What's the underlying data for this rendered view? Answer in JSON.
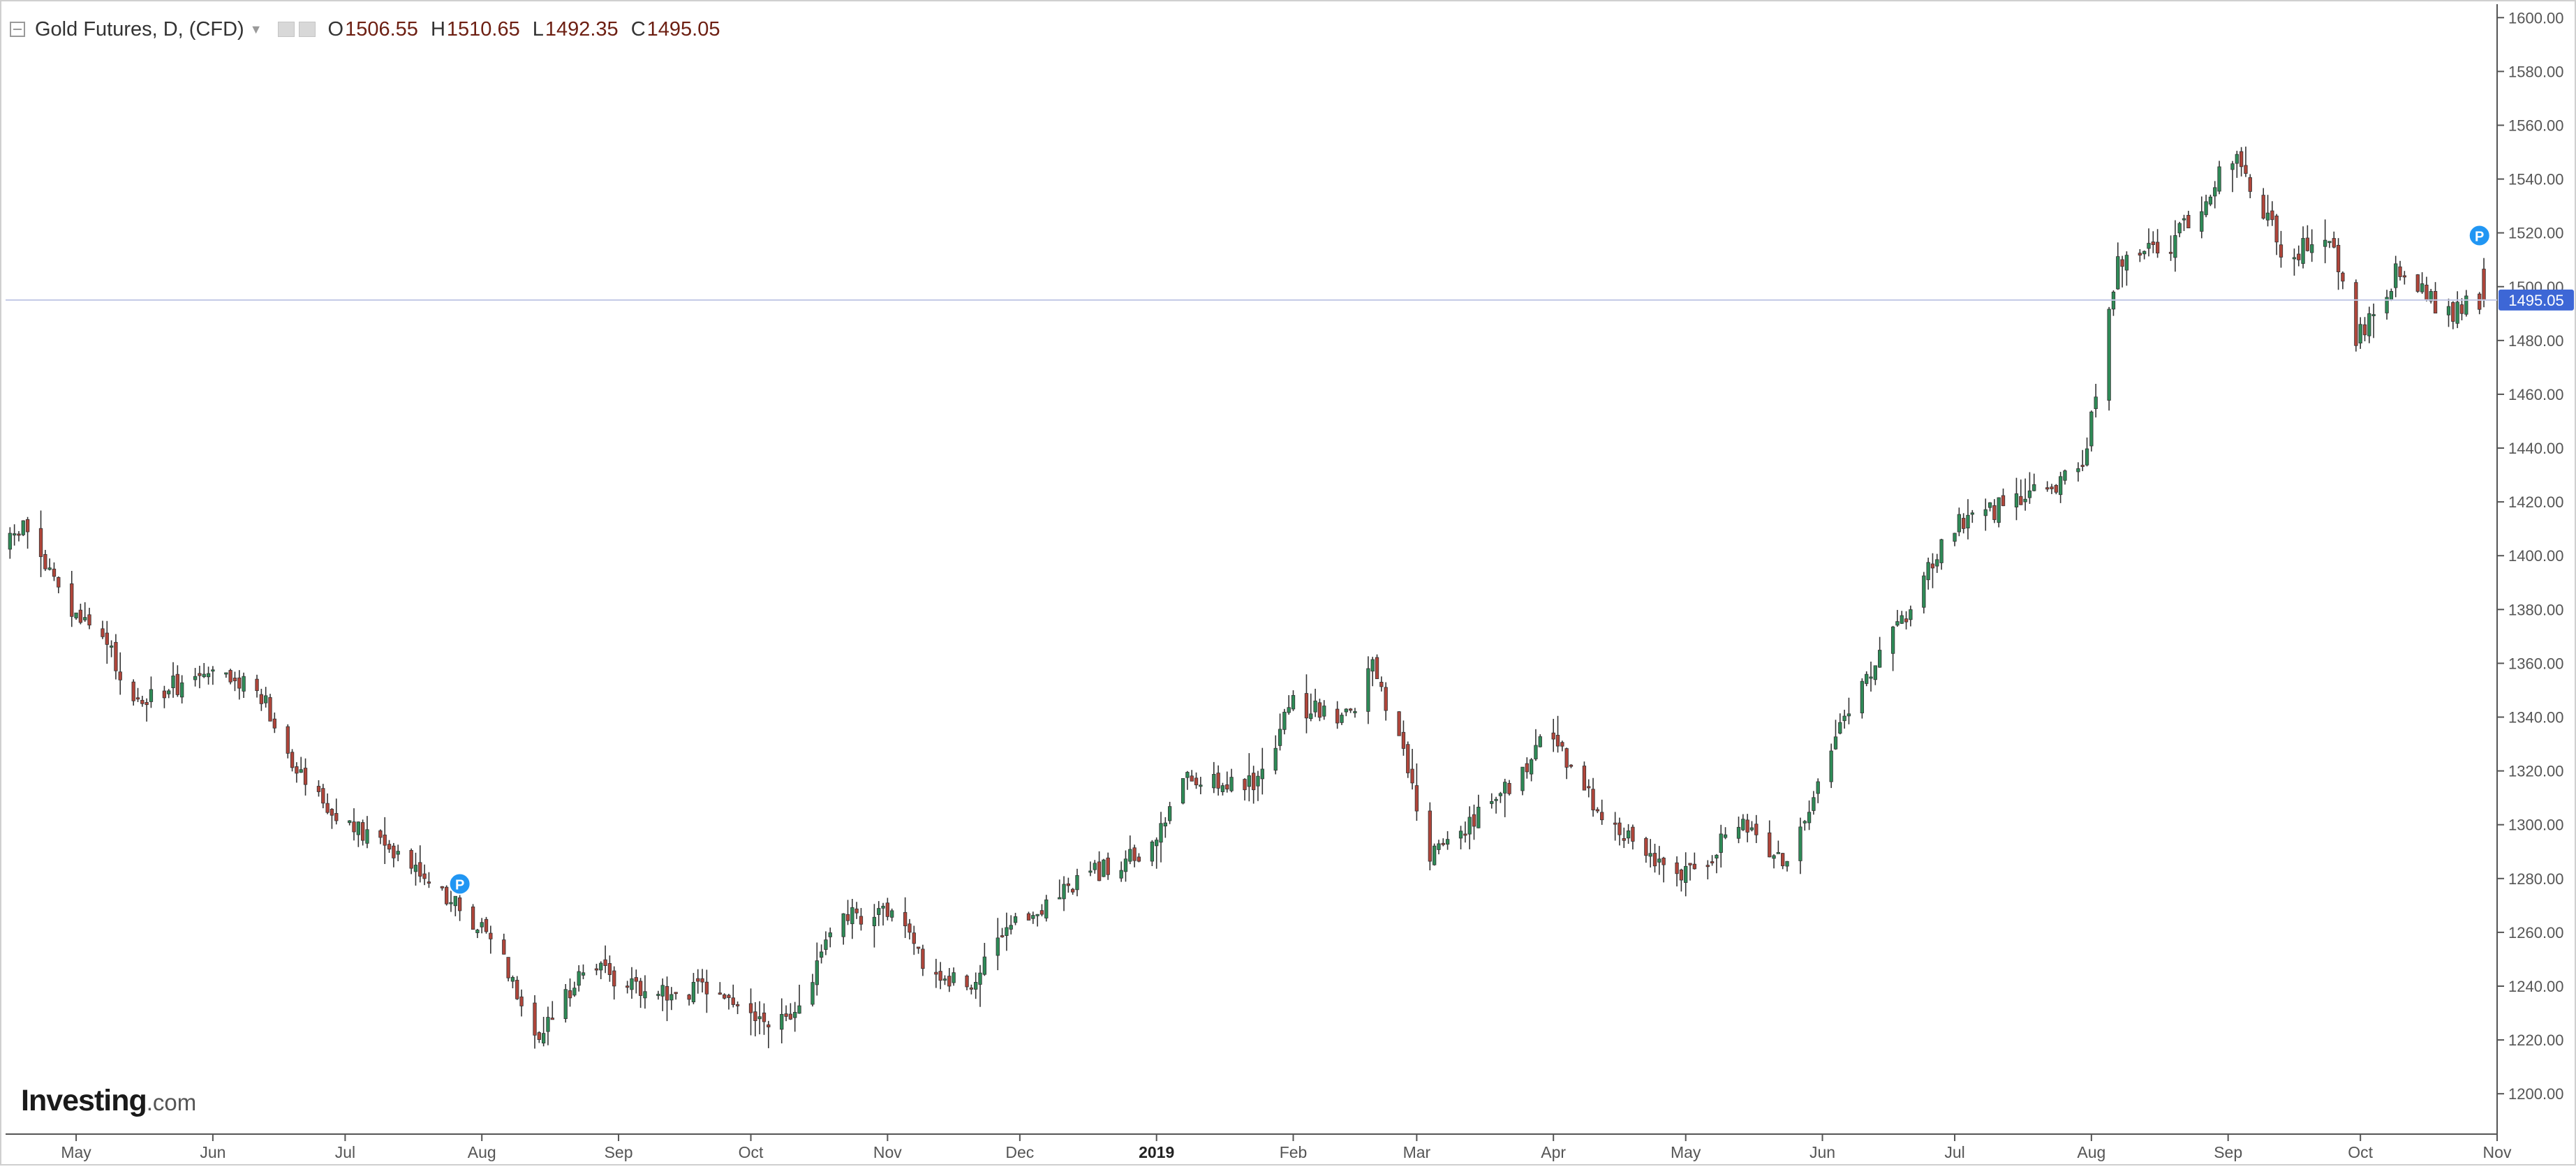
{
  "legend": {
    "symbol": "Gold Futures, D, (CFD)",
    "ohlc": [
      {
        "key": "O",
        "value": "1506.55"
      },
      {
        "key": "H",
        "value": "1510.65"
      },
      {
        "key": "L",
        "value": "1492.35"
      },
      {
        "key": "C",
        "value": "1495.05"
      }
    ]
  },
  "brand": {
    "main": "Investing",
    "tail": ".com"
  },
  "colors": {
    "up": "#2e8b57",
    "down": "#b0453a",
    "grid": "#e8ecf2",
    "axis": "#555555",
    "price_line": "#c3c9e6",
    "price_label_bg": "#3d67d6",
    "marker": "#2196f3"
  },
  "chart_data": {
    "type": "candlestick",
    "title": "Gold Futures, D, (CFD)",
    "xlabel": "",
    "ylabel": "",
    "ylim": [
      1185,
      1605
    ],
    "grid": false,
    "last_price": 1495.05,
    "last_price_label": "1495.05",
    "y_ticks": [
      {
        "value": 1200,
        "label": "1200.00"
      },
      {
        "value": 1220,
        "label": "1220.00"
      },
      {
        "value": 1240,
        "label": "1240.00"
      },
      {
        "value": 1260,
        "label": "1260.00"
      },
      {
        "value": 1280,
        "label": "1280.00"
      },
      {
        "value": 1300,
        "label": "1300.00"
      },
      {
        "value": 1320,
        "label": "1320.00"
      },
      {
        "value": 1340,
        "label": "1340.00"
      },
      {
        "value": 1360,
        "label": "1360.00"
      },
      {
        "value": 1380,
        "label": "1380.00"
      },
      {
        "value": 1400,
        "label": "1400.00"
      },
      {
        "value": 1420,
        "label": "1420.00"
      },
      {
        "value": 1440,
        "label": "1440.00"
      },
      {
        "value": 1460,
        "label": "1460.00"
      },
      {
        "value": 1480,
        "label": "1480.00"
      },
      {
        "value": 1500,
        "label": "1500.00"
      },
      {
        "value": 1520,
        "label": "1520.00"
      },
      {
        "value": 1540,
        "label": "1540.00"
      },
      {
        "value": 1560,
        "label": "1560.00"
      },
      {
        "value": 1580,
        "label": "1580.00"
      },
      {
        "value": 1600,
        "label": "1600.00"
      }
    ],
    "x_ticks": [
      {
        "date": "2018-05-01",
        "label": "May"
      },
      {
        "date": "2018-06-01",
        "label": "Jun"
      },
      {
        "date": "2018-07-01",
        "label": "Jul"
      },
      {
        "date": "2018-08-01",
        "label": "Aug"
      },
      {
        "date": "2018-09-01",
        "label": "Sep"
      },
      {
        "date": "2018-10-01",
        "label": "Oct"
      },
      {
        "date": "2018-11-01",
        "label": "Nov"
      },
      {
        "date": "2018-12-01",
        "label": "Dec"
      },
      {
        "date": "2019-01-01",
        "label": "2019",
        "bold": true
      },
      {
        "date": "2019-02-01",
        "label": "Feb"
      },
      {
        "date": "2019-03-01",
        "label": "Mar"
      },
      {
        "date": "2019-04-01",
        "label": "Apr"
      },
      {
        "date": "2019-05-01",
        "label": "May"
      },
      {
        "date": "2019-06-01",
        "label": "Jun"
      },
      {
        "date": "2019-07-01",
        "label": "Jul"
      },
      {
        "date": "2019-08-01",
        "label": "Aug"
      },
      {
        "date": "2019-09-01",
        "label": "Sep"
      },
      {
        "date": "2019-10-01",
        "label": "Oct"
      },
      {
        "date": "2019-11-01",
        "label": "Nov"
      }
    ],
    "x_range": [
      "2018-04-15",
      "2019-11-01"
    ],
    "markers": [
      {
        "date": "2018-07-27",
        "price": 1278,
        "label": "P"
      },
      {
        "date": "2019-10-28",
        "price": 1519,
        "label": "P"
      }
    ],
    "series": [
      {
        "anchors": [
          {
            "date": "2018-04-15",
            "price": 1400
          },
          {
            "date": "2018-04-20",
            "price": 1412
          },
          {
            "date": "2018-05-01",
            "price": 1378
          },
          {
            "date": "2018-05-08",
            "price": 1370
          },
          {
            "date": "2018-05-15",
            "price": 1345
          },
          {
            "date": "2018-05-29",
            "price": 1355
          },
          {
            "date": "2018-06-12",
            "price": 1352
          },
          {
            "date": "2018-06-20",
            "price": 1325
          },
          {
            "date": "2018-07-01",
            "price": 1300
          },
          {
            "date": "2018-07-15",
            "price": 1290
          },
          {
            "date": "2018-07-27",
            "price": 1270
          },
          {
            "date": "2018-08-05",
            "price": 1258
          },
          {
            "date": "2018-08-15",
            "price": 1220
          },
          {
            "date": "2018-08-25",
            "price": 1248
          },
          {
            "date": "2018-09-10",
            "price": 1238
          },
          {
            "date": "2018-09-25",
            "price": 1238
          },
          {
            "date": "2018-10-05",
            "price": 1225
          },
          {
            "date": "2018-10-12",
            "price": 1228
          },
          {
            "date": "2018-10-20",
            "price": 1262
          },
          {
            "date": "2018-11-01",
            "price": 1270
          },
          {
            "date": "2018-11-12",
            "price": 1245
          },
          {
            "date": "2018-11-20",
            "price": 1240
          },
          {
            "date": "2018-12-01",
            "price": 1262
          },
          {
            "date": "2018-12-15",
            "price": 1280
          },
          {
            "date": "2019-01-01",
            "price": 1290
          },
          {
            "date": "2019-01-08",
            "price": 1318
          },
          {
            "date": "2019-01-25",
            "price": 1315
          },
          {
            "date": "2019-02-01",
            "price": 1345
          },
          {
            "date": "2019-02-14",
            "price": 1340
          },
          {
            "date": "2019-02-20",
            "price": 1358
          },
          {
            "date": "2019-02-28",
            "price": 1320
          },
          {
            "date": "2019-03-05",
            "price": 1288
          },
          {
            "date": "2019-03-25",
            "price": 1318
          },
          {
            "date": "2019-04-01",
            "price": 1335
          },
          {
            "date": "2019-04-10",
            "price": 1310
          },
          {
            "date": "2019-04-20",
            "price": 1295
          },
          {
            "date": "2019-05-01",
            "price": 1280
          },
          {
            "date": "2019-05-15",
            "price": 1300
          },
          {
            "date": "2019-05-25",
            "price": 1285
          },
          {
            "date": "2019-06-05",
            "price": 1335
          },
          {
            "date": "2019-06-20",
            "price": 1375
          },
          {
            "date": "2019-07-01",
            "price": 1410
          },
          {
            "date": "2019-07-15",
            "price": 1420
          },
          {
            "date": "2019-07-31",
            "price": 1432
          },
          {
            "date": "2019-08-08",
            "price": 1510
          },
          {
            "date": "2019-08-20",
            "price": 1515
          },
          {
            "date": "2019-09-04",
            "price": 1550
          },
          {
            "date": "2019-09-15",
            "price": 1510
          },
          {
            "date": "2019-09-25",
            "price": 1520
          },
          {
            "date": "2019-10-01",
            "price": 1480
          },
          {
            "date": "2019-10-10",
            "price": 1505
          },
          {
            "date": "2019-10-22",
            "price": 1490
          },
          {
            "date": "2019-10-29",
            "price": 1495
          }
        ],
        "last_ohlc": {
          "date": "2019-10-29",
          "open": 1506.55,
          "high": 1510.65,
          "low": 1492.35,
          "close": 1495.05
        }
      }
    ]
  }
}
